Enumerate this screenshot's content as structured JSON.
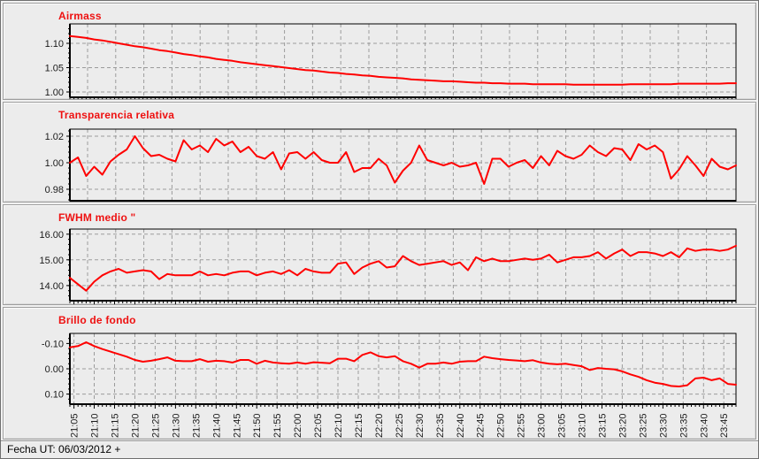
{
  "status_bar": {
    "label": "Fecha UT: 06/03/2012 +"
  },
  "colors": {
    "series_line": "#ff0000",
    "title_text": "#ee1111",
    "grid": "#9b9b9b",
    "axis": "#000000",
    "panel_bg": "#ececec",
    "text": "#000000"
  },
  "x_axis": {
    "start_time": "21:04",
    "end_time": "23:48",
    "tick_labels": [
      "21:05",
      "21:10",
      "21:15",
      "21:20",
      "21:25",
      "21:30",
      "21:35",
      "21:40",
      "21:45",
      "21:50",
      "21:55",
      "22:00",
      "22:05",
      "22:10",
      "22:15",
      "22:20",
      "22:25",
      "22:30",
      "22:35",
      "22:40",
      "22:45",
      "22:50",
      "22:55",
      "23:00",
      "23:05",
      "23:10",
      "23:15",
      "23:20",
      "23:25",
      "23:30",
      "23:35",
      "23:40",
      "23:45"
    ]
  },
  "chart_data": [
    {
      "type": "line",
      "title": "Airmass",
      "y_tick_labels": [
        "1.10",
        "1.05",
        "1.00"
      ],
      "y_ticks": [
        1.1,
        1.05,
        1.0
      ],
      "ylim_top": 1.14,
      "ylim_bottom": 0.989,
      "grid": true,
      "values": [
        1.115,
        1.113,
        1.111,
        1.108,
        1.106,
        1.103,
        1.1,
        1.097,
        1.094,
        1.092,
        1.089,
        1.086,
        1.084,
        1.081,
        1.078,
        1.076,
        1.073,
        1.071,
        1.068,
        1.066,
        1.064,
        1.061,
        1.059,
        1.057,
        1.055,
        1.053,
        1.051,
        1.049,
        1.047,
        1.045,
        1.044,
        1.042,
        1.04,
        1.039,
        1.037,
        1.036,
        1.034,
        1.033,
        1.031,
        1.03,
        1.029,
        1.028,
        1.026,
        1.025,
        1.024,
        1.023,
        1.022,
        1.022,
        1.021,
        1.02,
        1.019,
        1.019,
        1.018,
        1.018,
        1.017,
        1.017,
        1.017,
        1.016,
        1.016,
        1.016,
        1.016,
        1.016,
        1.015,
        1.015,
        1.015,
        1.015,
        1.015,
        1.015,
        1.015,
        1.016,
        1.016,
        1.016,
        1.016,
        1.016,
        1.016,
        1.017,
        1.017,
        1.017,
        1.017,
        1.017,
        1.017,
        1.018,
        1.018
      ]
    },
    {
      "type": "line",
      "title": "Transparencia relativa",
      "y_tick_labels": [
        "1.02",
        "1.00",
        "0.98"
      ],
      "y_ticks": [
        1.02,
        1.0,
        0.98
      ],
      "ylim_top": 1.0253,
      "ylim_bottom": 0.9713,
      "grid": true,
      "values": [
        1.0,
        1.004,
        0.99,
        0.997,
        0.991,
        1.001,
        1.006,
        1.01,
        1.02,
        1.011,
        1.005,
        1.006,
        1.003,
        1.001,
        1.017,
        1.01,
        1.013,
        1.008,
        1.018,
        1.013,
        1.016,
        1.008,
        1.012,
        1.005,
        1.003,
        1.008,
        0.995,
        1.007,
        1.008,
        1.003,
        1.008,
        1.002,
        1.0,
        1.0,
        1.008,
        0.993,
        0.996,
        0.996,
        1.003,
        0.998,
        0.985,
        0.994,
        1.0,
        1.013,
        1.002,
        1.0,
        0.998,
        1.0,
        0.997,
        0.998,
        1.0,
        0.984,
        1.003,
        1.003,
        0.997,
        1.0,
        1.002,
        0.996,
        1.005,
        0.998,
        1.009,
        1.005,
        1.003,
        1.006,
        1.013,
        1.008,
        1.005,
        1.011,
        1.01,
        1.002,
        1.014,
        1.01,
        1.013,
        1.008,
        0.988,
        0.995,
        1.005,
        0.998,
        0.99,
        1.003,
        0.997,
        0.995,
        0.998
      ]
    },
    {
      "type": "line",
      "title": "FWHM medio \"",
      "y_tick_labels": [
        "16.00",
        "15.00",
        "14.00"
      ],
      "y_ticks": [
        16.0,
        15.0,
        14.0
      ],
      "ylim_top": 16.2,
      "ylim_bottom": 13.41,
      "grid": true,
      "values": [
        14.3,
        14.05,
        13.8,
        14.15,
        14.4,
        14.55,
        14.65,
        14.5,
        14.55,
        14.6,
        14.55,
        14.25,
        14.45,
        14.4,
        14.4,
        14.4,
        14.55,
        14.4,
        14.45,
        14.4,
        14.5,
        14.55,
        14.55,
        14.4,
        14.5,
        14.55,
        14.45,
        14.6,
        14.4,
        14.65,
        14.55,
        14.5,
        14.5,
        14.85,
        14.9,
        14.45,
        14.7,
        14.85,
        14.95,
        14.7,
        14.75,
        15.15,
        14.95,
        14.8,
        14.85,
        14.9,
        14.95,
        14.8,
        14.9,
        14.6,
        15.1,
        14.95,
        15.05,
        14.95,
        14.95,
        15.0,
        15.05,
        15.0,
        15.05,
        15.2,
        14.9,
        15.0,
        15.1,
        15.1,
        15.15,
        15.3,
        15.05,
        15.25,
        15.4,
        15.15,
        15.3,
        15.3,
        15.25,
        15.15,
        15.3,
        15.1,
        15.45,
        15.35,
        15.4,
        15.4,
        15.35,
        15.4,
        15.55
      ]
    },
    {
      "type": "line",
      "title": "Brillo de fondo",
      "y_tick_labels": [
        "-0.10",
        "0.00",
        "0.10"
      ],
      "y_ticks": [
        -0.1,
        0.0,
        0.1
      ],
      "ylim_top": -0.14,
      "ylim_bottom": 0.14,
      "y_axis_inverted": true,
      "grid": true,
      "show_x_tick_labels": true,
      "values": [
        -0.085,
        -0.09,
        -0.105,
        -0.09,
        -0.078,
        -0.068,
        -0.058,
        -0.048,
        -0.035,
        -0.028,
        -0.032,
        -0.038,
        -0.045,
        -0.032,
        -0.03,
        -0.03,
        -0.038,
        -0.028,
        -0.032,
        -0.03,
        -0.025,
        -0.035,
        -0.035,
        -0.02,
        -0.032,
        -0.025,
        -0.022,
        -0.02,
        -0.025,
        -0.02,
        -0.026,
        -0.024,
        -0.022,
        -0.04,
        -0.04,
        -0.03,
        -0.055,
        -0.065,
        -0.05,
        -0.045,
        -0.05,
        -0.03,
        -0.02,
        -0.005,
        -0.02,
        -0.02,
        -0.025,
        -0.02,
        -0.028,
        -0.03,
        -0.03,
        -0.048,
        -0.042,
        -0.038,
        -0.035,
        -0.033,
        -0.03,
        -0.034,
        -0.025,
        -0.02,
        -0.018,
        -0.02,
        -0.015,
        -0.01,
        0.005,
        -0.003,
        0.0,
        0.002,
        0.01,
        0.022,
        0.032,
        0.045,
        0.055,
        0.06,
        0.068,
        0.07,
        0.065,
        0.038,
        0.035,
        0.045,
        0.038,
        0.06,
        0.063
      ]
    }
  ]
}
